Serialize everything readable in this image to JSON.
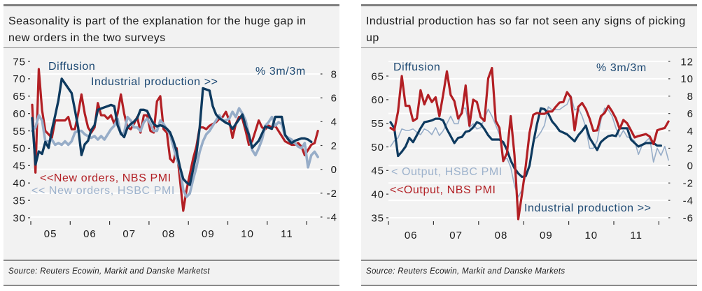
{
  "panels": [
    {
      "title_lines": [
        "Seasonality is part of the explanation for the huge gap in",
        "new orders in the two surveys"
      ],
      "source": "Source: Reuters Ecowin, Markit and Danske Marketst"
    },
    {
      "title_lines": [
        "Industrial production has so far not seen any signs of picking",
        "up"
      ],
      "source": "Source: Reuters Ecowin, Markit and Danske Markets"
    }
  ],
  "colors": {
    "axis_label_text": "#1c4872",
    "panel_background": "#f2f2f2",
    "rule": "#7f7f7f"
  },
  "chart_data": [
    {
      "type": "line",
      "title": "Seasonality is part of the explanation for the huge gap in new orders in the two surveys",
      "x_start": "2005-01",
      "frequency": "monthly",
      "x_tick_labels": [
        "05",
        "06",
        "07",
        "08",
        "09",
        "10",
        "11"
      ],
      "y_left": {
        "label": "Diffusion",
        "ylim": [
          30,
          75
        ],
        "ticks": [
          30,
          35,
          40,
          45,
          50,
          55,
          60,
          65,
          70,
          75
        ]
      },
      "y_right": {
        "label": "% 3m/3m",
        "ylim": [
          -4,
          8
        ],
        "ticks": [
          -4,
          -2,
          0,
          2,
          4,
          6,
          8
        ]
      },
      "grid": true,
      "series": [
        {
          "name": "New orders, NBS PMI",
          "label": "<<New orders, NBS PMI",
          "axis": "left",
          "start": "2005-01",
          "color": "#b21f24",
          "label_color": "#b21f24",
          "values": [
            62.5,
            43,
            72.8,
            61,
            55,
            54,
            53,
            58,
            58,
            58,
            58,
            59,
            55.5,
            55.5,
            60,
            65.5,
            60,
            56,
            54.5,
            56,
            63,
            59.5,
            59.5,
            58.5,
            59.5,
            57,
            60,
            65.5,
            60,
            56,
            55.5,
            57,
            59,
            54.5,
            59.5,
            59.5,
            55,
            54.5,
            63.5,
            65,
            55.5,
            54.5,
            47,
            46,
            50,
            41,
            32,
            38,
            42.5,
            47,
            50.5,
            56,
            56,
            55.5,
            56.5,
            57,
            57.5,
            58.5,
            59,
            60.5,
            58,
            53,
            57,
            59,
            58.5,
            55,
            51,
            52,
            55,
            58,
            56,
            55.5,
            56.5,
            56,
            56.5,
            55,
            53.5,
            52,
            51.5,
            51,
            51,
            51.5,
            50.5,
            48,
            49.5,
            51,
            51.5,
            55
          ]
        },
        {
          "name": "New orders, HSBC PMI",
          "label": "<< New orders, HSBC PMI",
          "axis": "left",
          "start": "2005-01",
          "color": "#97adc8",
          "label_color": "#9db2cc",
          "values": [
            55,
            56,
            59.5,
            58,
            52,
            52,
            52.5,
            51,
            51.5,
            51,
            52,
            51,
            52,
            54.5,
            55,
            55,
            54,
            53.5,
            53,
            53.5,
            52.5,
            53.5,
            52.5,
            54,
            55.5,
            56.5,
            58.5,
            54,
            54.5,
            59,
            58,
            56,
            56,
            55,
            57.5,
            58.5,
            57,
            55,
            55,
            58,
            57,
            55.5,
            54,
            50.5,
            47,
            44.5,
            38,
            36,
            37,
            41,
            44.5,
            49,
            52,
            54,
            55,
            56.5,
            58,
            59.5,
            58,
            58,
            58.5,
            60.5,
            59,
            61.5,
            60,
            58,
            54,
            49.5,
            48,
            50,
            52.5,
            56.5,
            57.5,
            59,
            56.5,
            57.5,
            57,
            53.5,
            53,
            52.5,
            51.5,
            50.5,
            50,
            51.5,
            44.5,
            48,
            49,
            47.5
          ]
        },
        {
          "name": "Industrial production",
          "label": "Industrial production >>",
          "axis": "right",
          "start": "2005-01",
          "color": "#0e3a5f",
          "label_color": "#1c4872",
          "values": [
            4.3,
            0.4,
            1.5,
            1.3,
            2.3,
            1.8,
            3.3,
            4.5,
            5.8,
            7.6,
            7.2,
            6.8,
            6.4,
            5.0,
            3.5,
            1.2,
            2.1,
            2.4,
            3.3,
            3.7,
            5.0,
            5.1,
            5.2,
            5.3,
            5.4,
            5.3,
            3.7,
            3.0,
            2.7,
            3.5,
            3.8,
            4.0,
            4.3,
            5.0,
            5.0,
            4.9,
            4.3,
            3.8,
            3.6,
            3.7,
            3.6,
            3.4,
            3.1,
            2.4,
            1.5,
            0.2,
            -0.8,
            -1.1,
            -1.3,
            0.0,
            1.3,
            3.5,
            6.8,
            6.7,
            6.6,
            5.3,
            4.6,
            4.3,
            4.1,
            3.9,
            3.8,
            3.4,
            3.8,
            4.2,
            4.6,
            3.6,
            2.9,
            1.8,
            2.1,
            2.4,
            3.0,
            3.6,
            3.5,
            3.4,
            4.4,
            4.4,
            4.4,
            2.9,
            2.5,
            2.2,
            2.4,
            2.5,
            2.6,
            2.6,
            2.5,
            2.3
          ]
        }
      ]
    },
    {
      "type": "line",
      "title": "Industrial production has so far not seen any signs of picking up",
      "x_start": "2006-01",
      "frequency": "monthly",
      "x_tick_labels": [
        "06",
        "07",
        "08",
        "09",
        "10",
        "11"
      ],
      "y_left": {
        "label": "Diffusion",
        "ylim": [
          35,
          65
        ],
        "ticks": [
          35,
          40,
          45,
          50,
          55,
          60,
          65
        ]
      },
      "y_right": {
        "label": "% 3m/3m",
        "ylim": [
          -6,
          12
        ],
        "ticks": [
          -6,
          -4,
          -2,
          0,
          2,
          4,
          6,
          8,
          10,
          12
        ]
      },
      "grid": true,
      "series": [
        {
          "name": "Output, NBS PMI",
          "label": "<<Output, NBS PMI",
          "axis": "left",
          "start": "2006-01",
          "color": "#b21f24",
          "label_color": "#b21f24",
          "values": [
            54,
            53.5,
            57.5,
            65,
            58.7,
            58.7,
            55.5,
            56,
            62,
            59,
            61,
            59.5,
            60.5,
            56.5,
            61,
            66,
            61,
            59.7,
            56,
            57.2,
            63,
            54.5,
            60,
            59.5,
            56.3,
            55.5,
            64.5,
            66.7,
            55.5,
            54,
            47,
            48.7,
            56.5,
            48.2,
            34.7,
            40,
            46,
            53,
            56.8,
            57.2,
            57,
            57,
            57.5,
            57.5,
            58.5,
            59.4,
            59.5,
            61.6,
            60.5,
            53.5,
            58.5,
            59.3,
            58,
            56,
            53.4,
            53.5,
            56.5,
            57.2,
            58.7,
            57.5,
            56,
            53.8,
            55.7,
            55,
            53.5,
            52,
            52.3,
            52.5,
            52.7,
            52.2,
            50.6,
            53.5,
            53.8,
            54,
            55.4
          ]
        },
        {
          "name": "Output, HSBC PMI",
          "label": "< Output, HSBC PMI",
          "axis": "left",
          "start": "2006-01",
          "color": "#97adc8",
          "label_color": "#9db2cc",
          "values": [
            50.1,
            51.3,
            51.9,
            53.8,
            53.5,
            53.5,
            53.8,
            53.1,
            52.6,
            53.8,
            53.4,
            52.6,
            54.1,
            52.4,
            53.4,
            54.9,
            56.5,
            54.9,
            54.9,
            58.2,
            58.2,
            54.1,
            54.9,
            53.8,
            54.1,
            56,
            58,
            56.5,
            54.6,
            52.6,
            47.2,
            47.6,
            45.7,
            41.8,
            39.4,
            40.9,
            43.8,
            45.7,
            51.6,
            52,
            53.1,
            54.6,
            58.5,
            57.8,
            57.9,
            57.9,
            58.5,
            59,
            60.9,
            57.8,
            58.2,
            56.5,
            54.1,
            49.7,
            49.7,
            51.2,
            55.6,
            58.2,
            57.8,
            56.5,
            54,
            52.1,
            53.5,
            52.1,
            51.9,
            51.2,
            48.4,
            50.4,
            51.2,
            51.9,
            46.8,
            49.7,
            48.2,
            50.1,
            47.2
          ]
        },
        {
          "name": "Industrial production",
          "label": "Industrial production >>",
          "axis": "right",
          "start": "2006-01",
          "color": "#0e3a5f",
          "label_color": "#1c4872",
          "values": [
            5.0,
            4.3,
            1.1,
            1.6,
            2.2,
            3.2,
            2.7,
            3.5,
            4.3,
            5.0,
            5.1,
            5.2,
            5.4,
            5.4,
            5.2,
            4.2,
            3.4,
            2.6,
            3.2,
            3.3,
            3.9,
            4.0,
            4.4,
            5.0,
            4.8,
            4.2,
            3.5,
            3.0,
            3.0,
            3.0,
            2.7,
            1.8,
            0.6,
            -0.3,
            -0.9,
            -1.3,
            -1.2,
            0.0,
            2.6,
            4.8,
            6.6,
            6.5,
            6.0,
            5.1,
            4.6,
            4.0,
            3.8,
            3.6,
            3.2,
            2.8,
            3.5,
            4.0,
            4.6,
            3.2,
            2.5,
            1.8,
            2.7,
            3.1,
            3.4,
            3.5,
            3.4,
            4.3,
            4.3,
            4.3,
            3.0,
            2.6,
            2.2,
            2.4,
            2.6,
            2.6,
            2.6,
            2.3,
            2.3
          ]
        }
      ]
    }
  ]
}
